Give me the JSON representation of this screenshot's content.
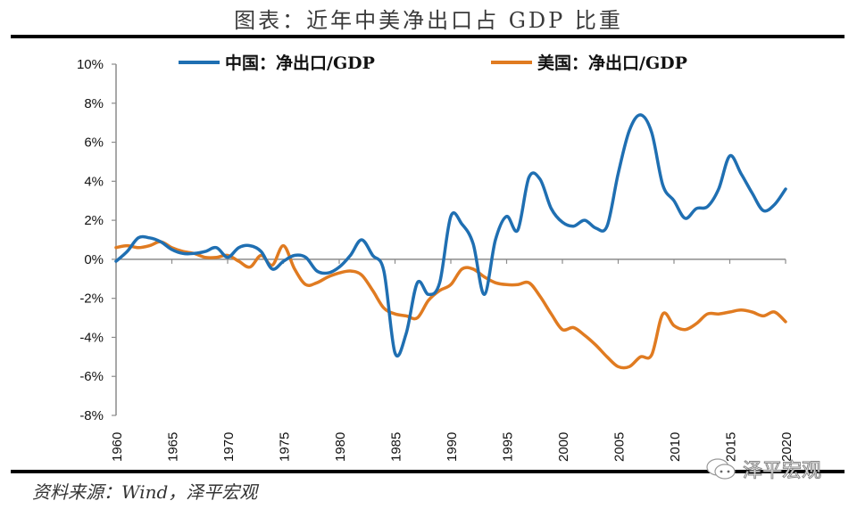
{
  "header": {
    "title": "图表：近年中美净出口占 GDP 比重"
  },
  "footer": {
    "source": "资料来源：Wind，泽平宏观",
    "watermark": "泽平宏观",
    "watermark_icon": "wechat-icon"
  },
  "chart_data": {
    "type": "line",
    "title": "图表：近年中美净出口占 GDP 比重",
    "xlabel": "",
    "ylabel": "",
    "xlim": [
      1960,
      2020
    ],
    "ylim": [
      -8,
      10
    ],
    "y_ticks": [
      10,
      8,
      6,
      4,
      2,
      0,
      -2,
      -4,
      -6,
      -8
    ],
    "y_tick_labels": [
      "10%",
      "8%",
      "6%",
      "4%",
      "2%",
      "0%",
      "-2%",
      "-4%",
      "-6%",
      "-8%"
    ],
    "x_ticks": [
      1960,
      1965,
      1970,
      1975,
      1980,
      1985,
      1990,
      1995,
      2000,
      2005,
      2010,
      2015,
      2020
    ],
    "x_tick_labels": [
      "1960",
      "1965",
      "1970",
      "1975",
      "1980",
      "1985",
      "1990",
      "1995",
      "2000",
      "2005",
      "2010",
      "2015",
      "2020"
    ],
    "grid": false,
    "legend_position": "top",
    "x": [
      1960,
      1961,
      1962,
      1963,
      1964,
      1965,
      1966,
      1967,
      1968,
      1969,
      1970,
      1971,
      1972,
      1973,
      1974,
      1975,
      1976,
      1977,
      1978,
      1979,
      1980,
      1981,
      1982,
      1983,
      1984,
      1985,
      1986,
      1987,
      1988,
      1989,
      1990,
      1991,
      1992,
      1993,
      1994,
      1995,
      1996,
      1997,
      1998,
      1999,
      2000,
      2001,
      2002,
      2003,
      2004,
      2005,
      2006,
      2007,
      2008,
      2009,
      2010,
      2011,
      2012,
      2013,
      2014,
      2015,
      2016,
      2017,
      2018,
      2019,
      2020
    ],
    "series": [
      {
        "name": "中国：净出口/GDP",
        "color": "#1f6fb2",
        "values": [
          -0.1,
          0.4,
          1.1,
          1.1,
          0.9,
          0.5,
          0.3,
          0.3,
          0.4,
          0.6,
          0.1,
          0.6,
          0.7,
          0.4,
          -0.5,
          -0.1,
          0.2,
          0.1,
          -0.6,
          -0.7,
          -0.4,
          0.2,
          1.0,
          0.2,
          -0.6,
          -4.8,
          -3.8,
          -1.2,
          -1.8,
          -1.2,
          2.2,
          1.8,
          0.8,
          -1.8,
          1.0,
          2.2,
          1.5,
          4.2,
          4.1,
          2.6,
          1.9,
          1.7,
          2.0,
          1.6,
          1.7,
          4.4,
          6.6,
          7.4,
          6.5,
          3.8,
          3.0,
          2.1,
          2.6,
          2.7,
          3.6,
          5.3,
          4.4,
          3.4,
          2.5,
          2.8,
          3.6
        ]
      },
      {
        "name": "美国：净出口/GDP",
        "color": "#e07b21",
        "values": [
          0.6,
          0.7,
          0.6,
          0.7,
          0.9,
          0.6,
          0.4,
          0.3,
          0.1,
          0.1,
          0.2,
          -0.1,
          -0.4,
          0.2,
          -0.3,
          0.7,
          -0.5,
          -1.3,
          -1.2,
          -0.9,
          -0.7,
          -0.6,
          -0.8,
          -1.6,
          -2.5,
          -2.8,
          -2.9,
          -3.0,
          -2.1,
          -1.6,
          -1.3,
          -0.5,
          -0.5,
          -0.9,
          -1.2,
          -1.3,
          -1.3,
          -1.2,
          -1.9,
          -2.8,
          -3.6,
          -3.5,
          -3.9,
          -4.4,
          -5.0,
          -5.5,
          -5.5,
          -5.0,
          -4.9,
          -2.8,
          -3.4,
          -3.6,
          -3.3,
          -2.8,
          -2.8,
          -2.7,
          -2.6,
          -2.7,
          -2.9,
          -2.7,
          -3.2
        ]
      }
    ]
  }
}
